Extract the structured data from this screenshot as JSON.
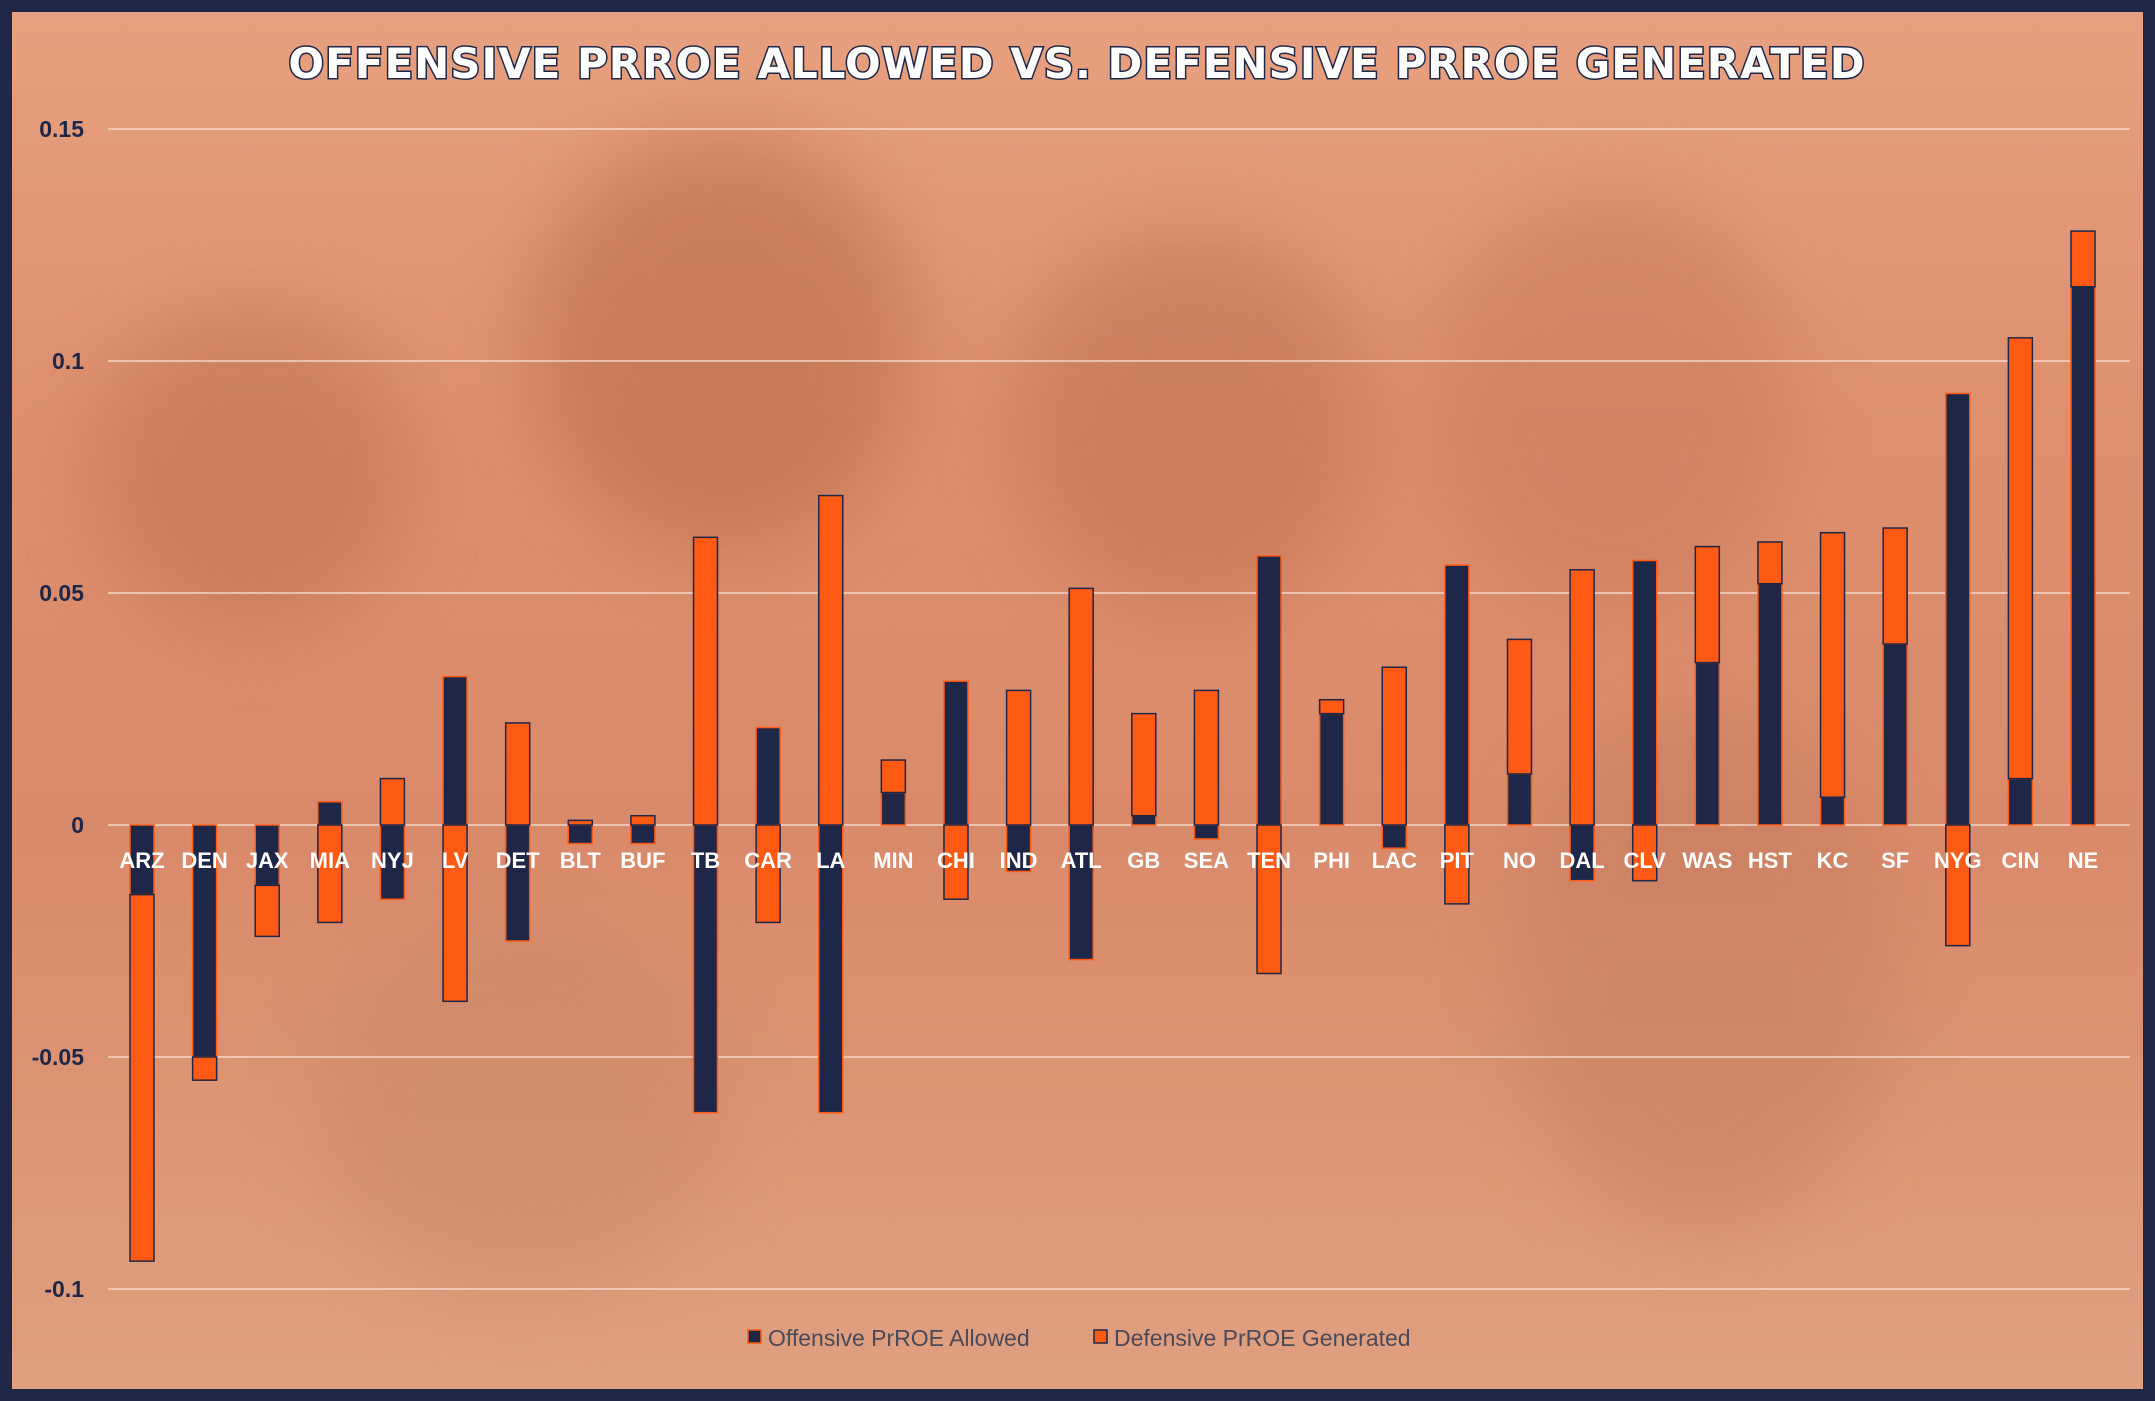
{
  "chart_data": {
    "type": "bar",
    "stacked": true,
    "title": "OFFENSIVE PRROE ALLOWED VS. DEFENSIVE PRROE GENERATED",
    "ylim": [
      -0.11,
      0.16
    ],
    "yticks": [
      0.15,
      0.1,
      0.05,
      0,
      -0.05,
      -0.1
    ],
    "ytick_labels": [
      "0.15",
      "0.1",
      "0.05",
      "0",
      "-0.05",
      "-0.1"
    ],
    "grid": true,
    "legend_position": "bottom",
    "categories": [
      "ARZ",
      "DEN",
      "JAX",
      "MIA",
      "NYJ",
      "LV",
      "DET",
      "BLT",
      "BUF",
      "TB",
      "CAR",
      "LA",
      "MIN",
      "CHI",
      "IND",
      "ATL",
      "GB",
      "SEA",
      "TEN",
      "PHI",
      "LAC",
      "PIT",
      "NO",
      "DAL",
      "CLV",
      "WAS",
      "HST",
      "KC",
      "SF",
      "NYG",
      "CIN",
      "NE"
    ],
    "series": [
      {
        "name": "Offensive PrROE Allowed",
        "color": "#1e2748",
        "values": [
          -0.015,
          -0.05,
          -0.013,
          0.005,
          -0.016,
          0.032,
          -0.025,
          -0.004,
          -0.004,
          -0.062,
          0.021,
          -0.062,
          0.007,
          0.031,
          -0.01,
          -0.029,
          0.002,
          -0.003,
          0.058,
          0.024,
          -0.005,
          0.056,
          0.011,
          -0.012,
          0.057,
          0.035,
          0.052,
          0.006,
          0.039,
          0.093,
          0.01,
          0.116
        ]
      },
      {
        "name": "Defensive PrROE Generated",
        "color": "#ff5a14",
        "values": [
          -0.079,
          -0.005,
          -0.011,
          -0.021,
          0.01,
          -0.038,
          0.022,
          0.001,
          0.002,
          0.062,
          -0.021,
          0.071,
          0.007,
          -0.016,
          0.029,
          0.051,
          0.022,
          0.029,
          -0.032,
          0.003,
          0.034,
          -0.017,
          0.029,
          0.055,
          -0.012,
          0.025,
          0.009,
          0.057,
          0.025,
          -0.026,
          0.095,
          0.012
        ]
      }
    ]
  }
}
